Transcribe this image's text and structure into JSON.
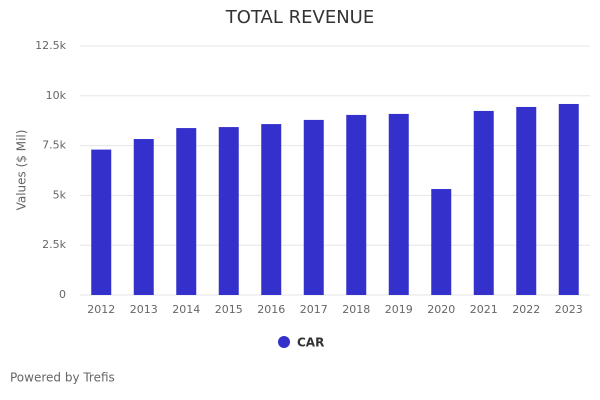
{
  "chart_data": {
    "type": "bar",
    "title": "TOTAL REVENUE",
    "y_label": "Values ($ Mil)",
    "categories": [
      "2012",
      "2013",
      "2014",
      "2015",
      "2016",
      "2017",
      "2018",
      "2019",
      "2020",
      "2021",
      "2022",
      "2023"
    ],
    "series": [
      {
        "name": "CAR",
        "color": "#3430cc",
        "values": [
          7300,
          7830,
          8380,
          8430,
          8580,
          8790,
          9040,
          9090,
          5320,
          9240,
          9440,
          9590
        ]
      }
    ],
    "ylim": [
      0,
      12500
    ],
    "yticks": [
      0,
      {
        "value": 2500,
        "label": "2.5k"
      },
      {
        "value": 5000,
        "label": "5k"
      },
      {
        "value": 7500,
        "label": "7.5k"
      },
      {
        "value": 10000,
        "label": "10k"
      },
      {
        "value": 12500,
        "label": "12.5k"
      }
    ],
    "grid": true,
    "legend": "bottom"
  },
  "footer": "Powered by Trefis"
}
